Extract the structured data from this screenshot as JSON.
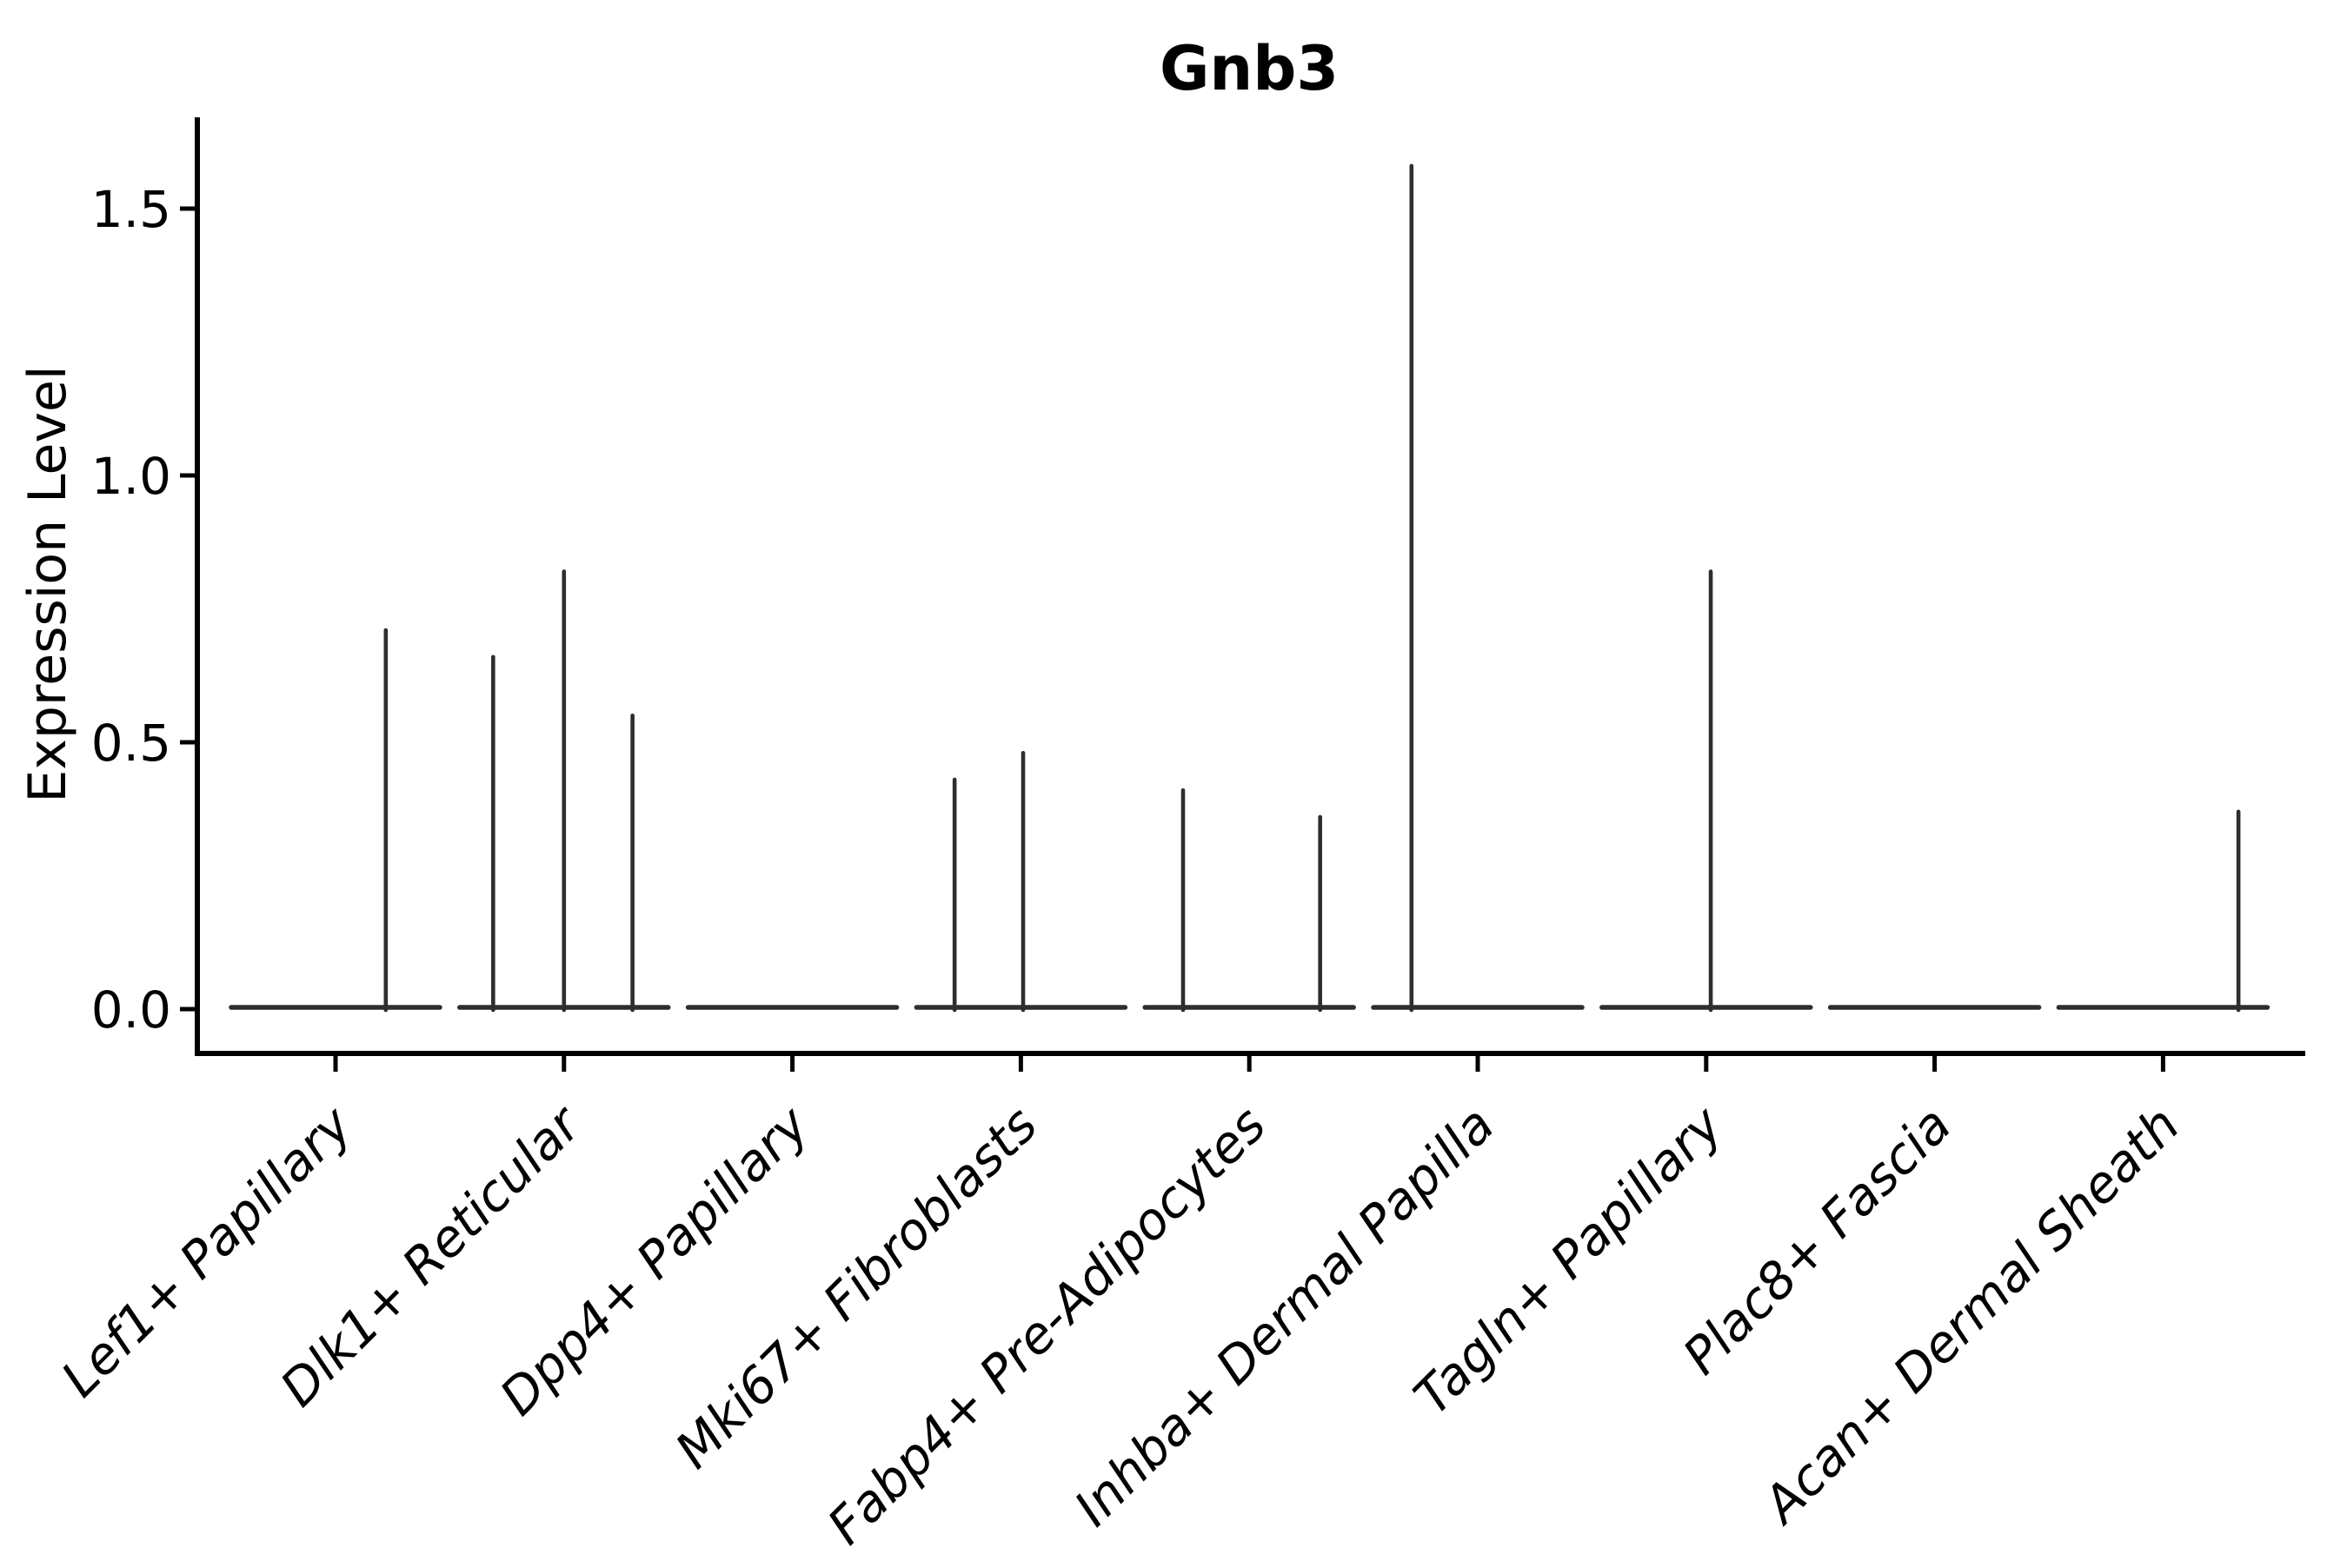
{
  "figure": {
    "title": "Gnb3"
  },
  "colors": {
    "background": "#ffffff",
    "axis": "#000000",
    "text": "#000000",
    "violin_outline": "#2e2e2e"
  },
  "chart_data": {
    "type": "violin",
    "title": "Gnb3",
    "xlabel": "",
    "ylabel": "Expression Level",
    "grid": false,
    "legend": false,
    "ylim": [
      -0.08,
      1.67
    ],
    "yticks": [
      0.0,
      0.5,
      1.0,
      1.5
    ],
    "ytick_labels": [
      "0.0",
      "0.5",
      "1.0",
      "1.5"
    ],
    "x_label_rotation_deg": 45,
    "categories": [
      "Lef1+ Papillary",
      "Dlk1+ Reticular",
      "Dpp4+ Papillary",
      "Mki67+ Fibroblasts",
      "Fabp4+ Pre-Adipocytes",
      "Inhba+ Dermal Papilla",
      "Tagln+ Papillary",
      "Plac8+ Fascia",
      "Acan+ Dermal Sheath"
    ],
    "violins": [
      {
        "category": "Lef1+ Papillary",
        "baseline_value": 0.0,
        "spikes": [
          {
            "dx": 0.22,
            "value": 0.71
          }
        ]
      },
      {
        "category": "Dlk1+ Reticular",
        "baseline_value": 0.0,
        "spikes": [
          {
            "dx": -0.31,
            "value": 0.66
          },
          {
            "dx": 0.0,
            "value": 0.82
          },
          {
            "dx": 0.3,
            "value": 0.55
          }
        ]
      },
      {
        "category": "Dpp4+ Papillary",
        "baseline_value": 0.0,
        "spikes": []
      },
      {
        "category": "Mki67+ Fibroblasts",
        "baseline_value": 0.0,
        "spikes": [
          {
            "dx": -0.29,
            "value": 0.43
          },
          {
            "dx": 0.01,
            "value": 0.48
          }
        ]
      },
      {
        "category": "Fabp4+ Pre-Adipocytes",
        "baseline_value": 0.0,
        "spikes": [
          {
            "dx": -0.29,
            "value": 0.41
          },
          {
            "dx": 0.31,
            "value": 0.36
          }
        ]
      },
      {
        "category": "Inhba+ Dermal Papilla",
        "baseline_value": 0.0,
        "spikes": [
          {
            "dx": -0.29,
            "value": 1.58
          }
        ]
      },
      {
        "category": "Tagln+ Papillary",
        "baseline_value": 0.0,
        "spikes": [
          {
            "dx": 0.02,
            "value": 0.82
          }
        ]
      },
      {
        "category": "Plac8+ Fascia",
        "baseline_value": 0.0,
        "spikes": []
      },
      {
        "category": "Acan+ Dermal Sheath",
        "baseline_value": 0.0,
        "spikes": [
          {
            "dx": 0.33,
            "value": 0.37
          }
        ]
      }
    ]
  }
}
